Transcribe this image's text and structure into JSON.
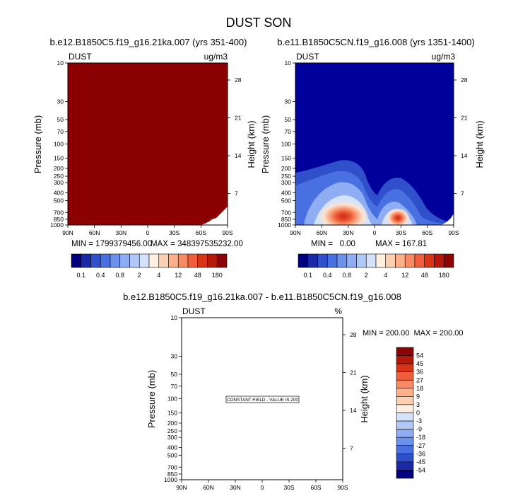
{
  "figure": {
    "title": "DUST SON"
  },
  "panels": [
    {
      "title": "b.e12.B1850C5.f19_g16.21ka.007 (yrs 351-400)",
      "variable": "DUST",
      "units": "ug/m3",
      "ylabel": "Pressure (mb)",
      "ylabel_right": "Height (km)",
      "min_text": "MIN = 1799379456.00",
      "max_text": "MAX = 348397535232.00"
    },
    {
      "title": "b.e11.B1850C5CN.f19_g16.008 (yrs 1351-1400)",
      "variable": "DUST",
      "units": "ug/m3",
      "ylabel": "Pressure (mb)",
      "ylabel_right": "Height (km)",
      "min_text": "MIN =   0.00",
      "max_text": "MAX = 167.81"
    },
    {
      "title": "b.e12.B1850C5.f19_g16.21ka.007 - b.e11.B1850C5CN.f19_g16.008",
      "variable": "DUST",
      "units": "%",
      "ylabel": "Pressure (mb)",
      "ylabel_right": "Height (km)",
      "minmax_text": "MIN = 200.00  MAX = 200.00",
      "note": "CONSTANT FIELD - VALUE IS 200"
    }
  ],
  "colorbar_top": {
    "colors": [
      "#00007e",
      "#1a2aa6",
      "#2f4fcb",
      "#4870e0",
      "#6b92ec",
      "#8eadf2",
      "#b0c8f8",
      "#d5e2fb",
      "#fff0e0",
      "#fdd0b4",
      "#fbb08a",
      "#f78a62",
      "#ef5f3c",
      "#d93418",
      "#b4180a",
      "#8c0404"
    ],
    "labels": [
      "0.1",
      "0.4",
      "0.8",
      "2",
      "4",
      "12",
      "48",
      "180"
    ]
  },
  "colorbar_diff": {
    "colors": [
      "#00007e",
      "#1a2aa6",
      "#2f4fcb",
      "#4870e0",
      "#6b92ec",
      "#8eadf2",
      "#b0c8f8",
      "#d5e2fb",
      "#fff0e0",
      "#fdd0b4",
      "#fbb08a",
      "#f78a62",
      "#ef5f3c",
      "#d93418",
      "#b4180a",
      "#8c0404"
    ],
    "labels": [
      "-54",
      "-45",
      "-36",
      "-27",
      "-18",
      "-9",
      "-3",
      "0",
      "3",
      "9",
      "18",
      "27",
      "36",
      "45",
      "54"
    ]
  },
  "chart_data": [
    {
      "type": "heatmap",
      "title": "b.e12.B1850C5.f19_g16.21ka.007 (yrs 351-400)",
      "xlabel": "",
      "ylabel": "Pressure (mb)",
      "y2label": "Height (km)",
      "x_ticks": [
        "90N",
        "60N",
        "30N",
        "0",
        "30S",
        "60S",
        "90S"
      ],
      "y_ticks": [
        "10",
        "30",
        "50",
        "70",
        "100",
        "150",
        "200",
        "250",
        "300",
        "400",
        "500",
        "700",
        "850",
        "1000"
      ],
      "y2_ticks": [
        "28",
        "21",
        "14",
        "7"
      ],
      "y_scale": "log",
      "ylim": [
        1000,
        10
      ],
      "min": 1799379456.0,
      "max": 348397535232.0,
      "field": "uniform maximum value everywhere above ground (dark red)"
    },
    {
      "type": "heatmap",
      "title": "b.e11.B1850C5CN.f19_g16.008 (yrs 1351-1400)",
      "xlabel": "",
      "ylabel": "Pressure (mb)",
      "y2label": "Height (km)",
      "x_ticks": [
        "90N",
        "60N",
        "30N",
        "0",
        "30S",
        "60S",
        "90S"
      ],
      "y_ticks": [
        "10",
        "30",
        "50",
        "70",
        "100",
        "150",
        "200",
        "250",
        "300",
        "400",
        "500",
        "700",
        "850",
        "1000"
      ],
      "y2_ticks": [
        "28",
        "21",
        "14",
        "7"
      ],
      "y_scale": "log",
      "ylim": [
        1000,
        10
      ],
      "min": 0.0,
      "max": 167.81,
      "maxima": [
        {
          "lat": "25N",
          "pressure": 850
        },
        {
          "lat": "30S",
          "pressure": 850
        }
      ]
    },
    {
      "type": "heatmap",
      "title": "b.e12.B1850C5.f19_g16.21ka.007 - b.e11.B1850C5CN.f19_g16.008",
      "xlabel": "",
      "ylabel": "Pressure (mb)",
      "y2label": "Height (km)",
      "x_ticks": [
        "90N",
        "60N",
        "30N",
        "0",
        "30S",
        "60S",
        "90S"
      ],
      "y_ticks": [
        "10",
        "30",
        "50",
        "70",
        "100",
        "150",
        "200",
        "250",
        "300",
        "400",
        "500",
        "700",
        "850",
        "1000"
      ],
      "y2_ticks": [
        "28",
        "21",
        "14",
        "7"
      ],
      "y_scale": "log",
      "ylim": [
        1000,
        10
      ],
      "min": 200.0,
      "max": 200.0,
      "constant_value": 200
    }
  ]
}
